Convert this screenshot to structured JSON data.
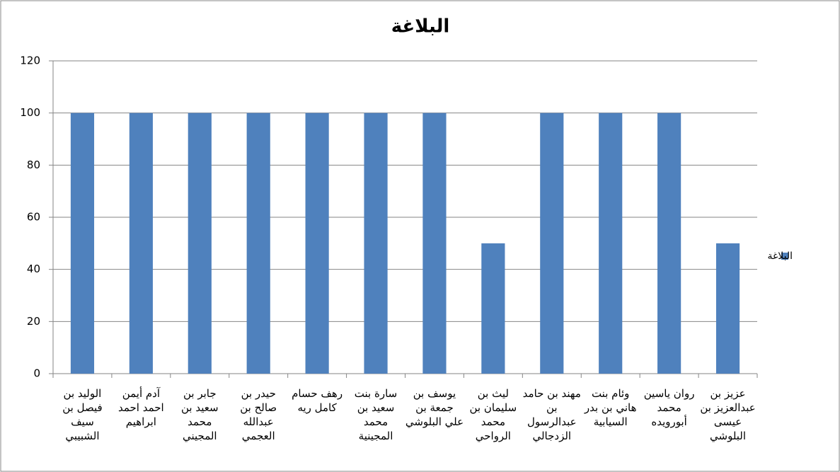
{
  "chart_data": {
    "type": "bar",
    "title": "البلاغة",
    "categories": [
      "الوليد بن فيصل بن سيف الشبيبي",
      "آدم أيمن احمد احمد ابراهيم",
      "جابر بن سعيد بن محمد المجيني",
      "حيدر بن صالح بن عبدالله العجمي",
      "رهف حسام كامل ريه",
      "سارة بنت سعيد بن محمد المجينية",
      "يوسف بن جمعة بن علي البلوشي",
      "ليث بن سليمان بن محمد الرواحي",
      "مهند بن حامد بن عبدالرسول الزدجالي",
      "وئام بنت هاني بن بدر السيابية",
      "روان ياسين محمد أبورويده",
      "عزيز بن عبدالعزيز بن عيسى البلوشي"
    ],
    "series": [
      {
        "name": "البلاغة",
        "color": "#4f81bd",
        "values": [
          100,
          100,
          100,
          100,
          100,
          100,
          100,
          50,
          100,
          100,
          100,
          50
        ]
      }
    ],
    "ylim": [
      0,
      120
    ],
    "yticks": [
      0,
      20,
      40,
      60,
      80,
      100,
      120
    ],
    "grid": true,
    "legend": "right"
  }
}
